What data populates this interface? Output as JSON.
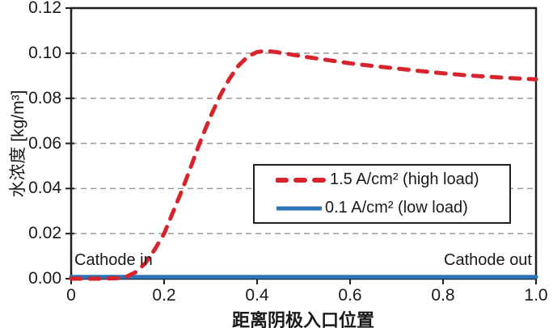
{
  "chart_data": {
    "type": "line",
    "title": "",
    "xlabel": "距离阴极入口位置",
    "ylabel": "水浓度 [kg/m³]",
    "xlim": [
      0,
      1.0
    ],
    "ylim": [
      0,
      0.12
    ],
    "xticks": [
      0,
      0.2,
      0.4,
      0.6,
      0.8,
      1.0
    ],
    "xtick_labels": [
      "0",
      "0.2",
      "0.4",
      "0.6",
      "0.8",
      "1.0"
    ],
    "yticks": [
      0,
      0.02,
      0.04,
      0.06,
      0.08,
      0.1,
      0.12
    ],
    "ytick_labels": [
      "0.00",
      "0.02",
      "0.04",
      "0.06",
      "0.08",
      "0.10",
      "0.12"
    ],
    "grid": "horizontal-dashed",
    "legend_position": "inside-lower-right",
    "series": [
      {
        "name": "1.5 A/cm² (high load)",
        "color": "#d7232c",
        "style": "dashed",
        "x": [
          0,
          0.06,
          0.1,
          0.12,
          0.14,
          0.16,
          0.18,
          0.2,
          0.22,
          0.24,
          0.26,
          0.28,
          0.3,
          0.32,
          0.34,
          0.36,
          0.38,
          0.4,
          0.42,
          0.44,
          0.47,
          0.5,
          0.55,
          0.6,
          0.65,
          0.7,
          0.75,
          0.8,
          0.85,
          0.9,
          0.95,
          1.0
        ],
        "y": [
          0,
          0,
          0.0002,
          0.001,
          0.003,
          0.007,
          0.013,
          0.02,
          0.03,
          0.04,
          0.051,
          0.062,
          0.072,
          0.081,
          0.0885,
          0.0945,
          0.0985,
          0.1005,
          0.101,
          0.1005,
          0.0995,
          0.0985,
          0.097,
          0.0955,
          0.0943,
          0.0932,
          0.0921,
          0.0911,
          0.0902,
          0.0895,
          0.0889,
          0.0884
        ]
      },
      {
        "name": "0.1 A/cm² (low load)",
        "color": "#2b74b8",
        "style": "solid",
        "x": [
          0,
          1.0
        ],
        "y": [
          0.0008,
          0.0008
        ]
      }
    ],
    "annotations": [
      {
        "text": "Cathode in"
      },
      {
        "text": "Cathode out"
      }
    ]
  },
  "colors": {
    "high_load": "#d7232c",
    "low_load": "#2b74b8",
    "grid": "#9a9a9a",
    "axis": "#1f1f1f",
    "background": "#ffffff"
  }
}
